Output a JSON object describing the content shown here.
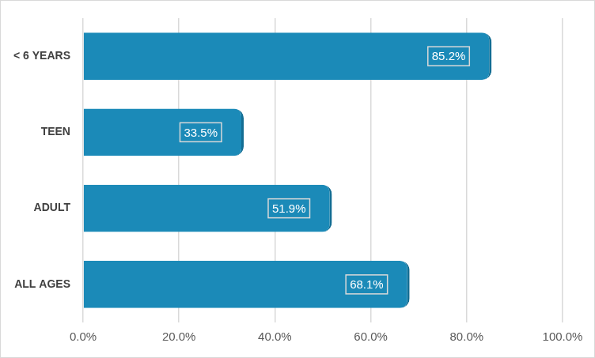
{
  "chart_data": {
    "type": "bar",
    "orientation": "horizontal",
    "categories": [
      "< 6 YEARS",
      "TEEN",
      "ADULT",
      "ALL AGES"
    ],
    "values": [
      85.2,
      33.5,
      51.9,
      68.1
    ],
    "value_labels": [
      "85.2%",
      "33.5%",
      "51.9%",
      "68.1%"
    ],
    "color": "#1b8ab8",
    "xlim": [
      0,
      100
    ],
    "xticks": [
      {
        "value": 0,
        "label": "0.0%"
      },
      {
        "value": 20,
        "label": "20.0%"
      },
      {
        "value": 40,
        "label": "40.0%"
      },
      {
        "value": 60,
        "label": "60.0%"
      },
      {
        "value": 80,
        "label": "80.0%"
      },
      {
        "value": 100,
        "label": "100.0%"
      }
    ],
    "grid": true,
    "data_labels": true
  }
}
